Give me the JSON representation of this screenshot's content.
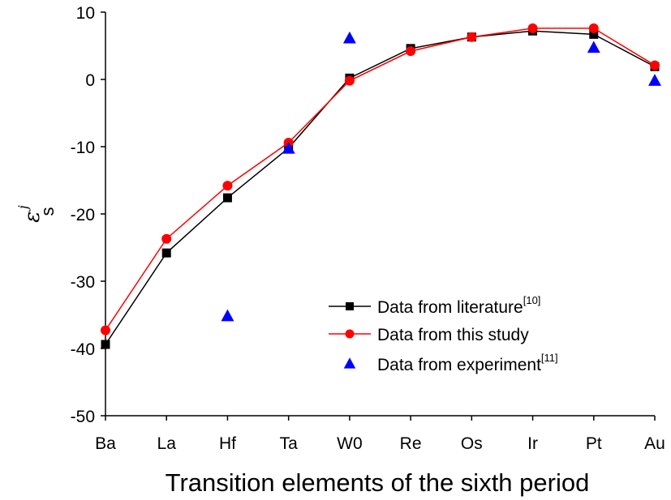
{
  "chart_data": {
    "type": "line",
    "xlabel": "Transition elements of the sixth period",
    "ylabel": {
      "symbol": "ε",
      "sub": "s",
      "sup": "j"
    },
    "categories": [
      "Ba",
      "La",
      "Hf",
      "Ta",
      "W0",
      "Re",
      "Os",
      "Ir",
      "Pt",
      "Au"
    ],
    "ylim": [
      -50,
      10
    ],
    "yticks": [
      -50,
      -40,
      -30,
      -20,
      -10,
      0,
      10
    ],
    "series": [
      {
        "name": "Data from literature",
        "ref": "[10]",
        "color": "#000000",
        "marker": "square",
        "line": true,
        "values": [
          -39.4,
          -25.8,
          -17.6,
          -10.2,
          0.2,
          4.6,
          6.3,
          7.2,
          6.7,
          1.9
        ]
      },
      {
        "name": "Data from this study",
        "ref": "",
        "color": "#ff0000",
        "marker": "circle",
        "line": true,
        "values": [
          -37.3,
          -23.7,
          -15.8,
          -9.4,
          -0.2,
          4.2,
          6.3,
          7.6,
          7.6,
          2.1
        ]
      },
      {
        "name": "Data from experiment",
        "ref": "[11]",
        "color": "#0000ff",
        "marker": "triangle",
        "line": false,
        "values": [
          null,
          null,
          -35.2,
          -10.3,
          6.1,
          null,
          null,
          null,
          4.7,
          -0.2
        ]
      }
    ],
    "legend_position": "lower-right-inside",
    "grid": false
  }
}
